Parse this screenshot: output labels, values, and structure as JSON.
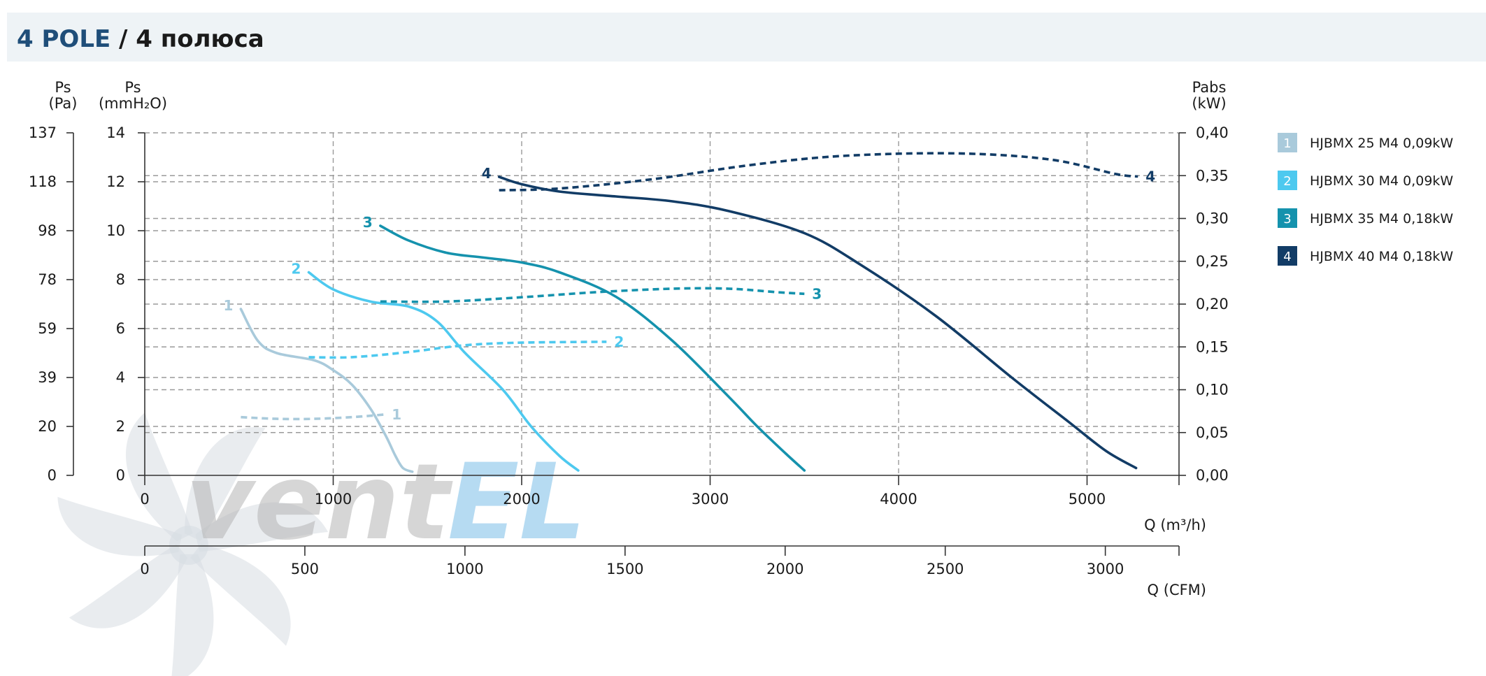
{
  "title": {
    "part1": "4 POLE",
    "part2": " / 4 полюса",
    "color1": "#1f4e79",
    "color2": "#1a1a1a"
  },
  "watermark": {
    "text1": "vent",
    "text2": "EL"
  },
  "colors": {
    "c1": "#a9cadb",
    "c2": "#4dc9ef",
    "c3": "#1592ad",
    "c4": "#123c66"
  },
  "chart_data": {
    "type": "line",
    "title": "4 POLE / 4 полюса",
    "xlabel": "Q (m³/h)",
    "x2label": "Q (CFM)",
    "y_left_outer_label": [
      "Ps",
      "(Pa)"
    ],
    "y_left_inner_label": [
      "Ps",
      "(mmH₂O)"
    ],
    "y_right_label": [
      "Pabs",
      "(kW)"
    ],
    "xlim": [
      0,
      5500
    ],
    "ylim": [
      0,
      14
    ],
    "y2lim": [
      0,
      0.4
    ],
    "x_ticks": [
      "0",
      "1000",
      "2000",
      "3000",
      "4000",
      "5000"
    ],
    "x2_ticks": [
      "0",
      "500",
      "1000",
      "1500",
      "2000",
      "2500",
      "3000"
    ],
    "y_ticks_mm": [
      "0",
      "2",
      "4",
      "6",
      "8",
      "10",
      "12",
      "14"
    ],
    "y_ticks_pa": [
      "0",
      "20",
      "39",
      "59",
      "78",
      "98",
      "118",
      "137"
    ],
    "y_ticks_kw": [
      "0,00",
      "0,05",
      "0,10",
      "0,15",
      "0,20",
      "0,25",
      "0,30",
      "0,35",
      "0,40"
    ],
    "grid": true,
    "legend_position": "right",
    "series": [
      {
        "id": "1",
        "name": "HJBMX 25 M4 0,09kW",
        "color_key": "c1",
        "pressure": [
          [
            510,
            6.8
          ],
          [
            600,
            5.5
          ],
          [
            700,
            5.0
          ],
          [
            900,
            4.7
          ],
          [
            1000,
            4.3
          ],
          [
            1100,
            3.7
          ],
          [
            1200,
            2.7
          ],
          [
            1280,
            1.6
          ],
          [
            1330,
            0.8
          ],
          [
            1370,
            0.3
          ],
          [
            1420,
            0.15
          ]
        ],
        "power": [
          [
            510,
            0.068
          ],
          [
            700,
            0.066
          ],
          [
            900,
            0.066
          ],
          [
            1100,
            0.068
          ],
          [
            1270,
            0.071
          ]
        ]
      },
      {
        "id": "2",
        "name": "HJBMX 30 M4 0,09kW",
        "color_key": "c2",
        "pressure": [
          [
            870,
            8.3
          ],
          [
            1000,
            7.6
          ],
          [
            1200,
            7.1
          ],
          [
            1400,
            6.9
          ],
          [
            1550,
            6.3
          ],
          [
            1700,
            5.0
          ],
          [
            1900,
            3.5
          ],
          [
            2050,
            2.0
          ],
          [
            2200,
            0.8
          ],
          [
            2300,
            0.2
          ]
        ],
        "power": [
          [
            870,
            0.138
          ],
          [
            1100,
            0.138
          ],
          [
            1400,
            0.144
          ],
          [
            1700,
            0.152
          ],
          [
            2000,
            0.155
          ],
          [
            2450,
            0.156
          ]
        ]
      },
      {
        "id": "3",
        "name": "HJBMX 35 M4 0,18kW",
        "color_key": "c3",
        "pressure": [
          [
            1250,
            10.2
          ],
          [
            1400,
            9.6
          ],
          [
            1600,
            9.1
          ],
          [
            1800,
            8.9
          ],
          [
            2000,
            8.7
          ],
          [
            2200,
            8.3
          ],
          [
            2500,
            7.3
          ],
          [
            2800,
            5.5
          ],
          [
            3100,
            3.2
          ],
          [
            3250,
            2.0
          ],
          [
            3400,
            0.9
          ],
          [
            3500,
            0.2
          ]
        ],
        "power": [
          [
            1250,
            0.203
          ],
          [
            1600,
            0.203
          ],
          [
            2000,
            0.208
          ],
          [
            2400,
            0.214
          ],
          [
            2800,
            0.218
          ],
          [
            3100,
            0.218
          ],
          [
            3350,
            0.214
          ],
          [
            3500,
            0.212
          ]
        ]
      },
      {
        "id": "4",
        "name": "HJBMX 40 M4 0,18kW",
        "color_key": "c4",
        "pressure": [
          [
            1880,
            12.2
          ],
          [
            2000,
            11.9
          ],
          [
            2200,
            11.6
          ],
          [
            2500,
            11.4
          ],
          [
            2800,
            11.2
          ],
          [
            3100,
            10.8
          ],
          [
            3500,
            9.9
          ],
          [
            3800,
            8.6
          ],
          [
            4200,
            6.5
          ],
          [
            4600,
            4.0
          ],
          [
            4900,
            2.2
          ],
          [
            5100,
            1.0
          ],
          [
            5260,
            0.3
          ]
        ],
        "power": [
          [
            1880,
            0.333
          ],
          [
            2200,
            0.335
          ],
          [
            2700,
            0.346
          ],
          [
            3200,
            0.362
          ],
          [
            3700,
            0.373
          ],
          [
            4300,
            0.376
          ],
          [
            4800,
            0.369
          ],
          [
            5150,
            0.352
          ],
          [
            5270,
            0.349
          ]
        ]
      }
    ]
  }
}
